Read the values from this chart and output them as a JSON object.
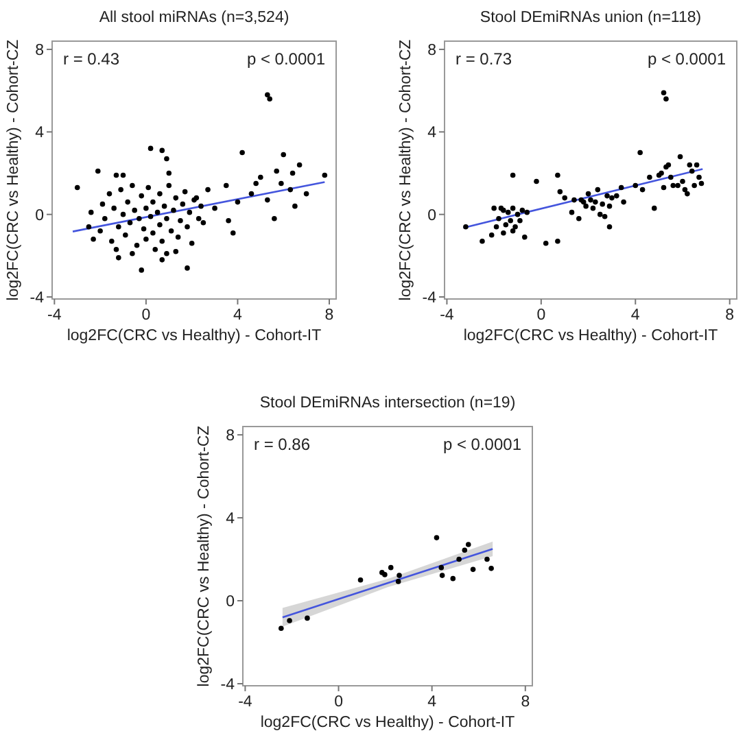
{
  "chart_data": [
    {
      "type": "scatter",
      "title": "All stool miRNAs (n=3,524)",
      "xlabel": "log2FC(CRC vs Healthy) - Cohort-IT",
      "ylabel": "log2FC(CRC vs Healthy) - Cohort-CZ",
      "xlim": [
        -4.1,
        8.3
      ],
      "ylim": [
        -4.1,
        8.4
      ],
      "xticks": [
        -4,
        0,
        4,
        8
      ],
      "yticks": [
        -4,
        0,
        4,
        8
      ],
      "marker": "circle",
      "annotations": [
        "r = 0.43",
        "p < 0.0001"
      ],
      "series": [
        {
          "color": "#000000",
          "x": [
            5.3,
            5.4,
            0.2,
            0.7,
            0.9,
            4.2,
            -2.1,
            -3.0,
            -1.3,
            -1.0,
            1.0,
            -2.3,
            -1.2,
            -0.2,
            1.8,
            0.7,
            3.8,
            5.6,
            6.5,
            6.0,
            6.7,
            5.9,
            7.8,
            6.4,
            5.7,
            5.0,
            4.6,
            4.0,
            3.5,
            3.0,
            2.7,
            2.5,
            2.2,
            6.3,
            5.3,
            4.8,
            3.6,
            7.0,
            -2.5,
            -2.4,
            -2.0,
            -1.9,
            -1.8,
            -1.6,
            -1.5,
            -1.4,
            -1.2,
            -1.1,
            -1.0,
            -0.9,
            -0.8,
            -0.7,
            -0.6,
            -0.5,
            -0.4,
            -0.3,
            -0.2,
            -0.1,
            0.0,
            0.0,
            0.1,
            0.2,
            0.3,
            0.3,
            0.4,
            0.5,
            0.6,
            0.6,
            0.7,
            0.8,
            0.9,
            1.0,
            1.1,
            1.2,
            1.3,
            1.4,
            1.5,
            1.6,
            1.7,
            1.8,
            1.9,
            2.0,
            2.1,
            2.3,
            2.4,
            -0.6,
            0.9,
            -1.3,
            1.3
          ],
          "values": [
            5.8,
            5.6,
            3.2,
            3.1,
            2.7,
            3.0,
            2.1,
            1.3,
            1.9,
            1.9,
            2.0,
            -1.2,
            -2.1,
            -2.7,
            -2.6,
            -2.2,
            -0.9,
            -0.2,
            0.4,
            2.9,
            2.4,
            1.5,
            1.9,
            2.0,
            2.1,
            1.8,
            1.0,
            0.6,
            1.4,
            0.3,
            1.2,
            -0.4,
            0.8,
            1.2,
            0.7,
            1.5,
            -0.3,
            1.0,
            -0.6,
            0.1,
            -0.8,
            0.5,
            -0.2,
            1.0,
            -1.3,
            0.3,
            -0.6,
            1.2,
            0.0,
            -1.0,
            0.6,
            -0.4,
            1.4,
            0.2,
            -1.5,
            -0.2,
            0.9,
            -0.7,
            0.3,
            -1.2,
            1.3,
            -0.1,
            0.6,
            -0.9,
            -1.7,
            0.1,
            1.0,
            -0.5,
            -1.3,
            0.4,
            -0.2,
            1.4,
            -0.8,
            0.2,
            0.8,
            -1.1,
            -0.3,
            0.5,
            1.1,
            -0.6,
            0.1,
            -1.4,
            0.7,
            -0.2,
            0.4,
            -1.9,
            -1.9,
            -1.7,
            -1.8
          ]
        },
        {
          "type": "line",
          "marker": "none",
          "color": "#4455dd",
          "x": [
            -3.2,
            7.8
          ],
          "values": [
            -0.83,
            1.57
          ]
        }
      ]
    },
    {
      "type": "scatter",
      "title": "Stool DEmiRNAs union (n=118)",
      "xlabel": "log2FC(CRC vs Healthy) - Cohort-IT",
      "ylabel": "log2FC(CRC vs Healthy) - Cohort-CZ",
      "xlim": [
        -4.1,
        8.3
      ],
      "ylim": [
        -4.1,
        8.4
      ],
      "xticks": [
        -4,
        0,
        4,
        8
      ],
      "yticks": [
        -4,
        0,
        4,
        8
      ],
      "marker": "circle",
      "annotations": [
        "r = 0.73",
        "p < 0.0001"
      ],
      "series": [
        {
          "color": "#000000",
          "x": [
            5.2,
            5.3,
            4.2,
            -1.2,
            0.7,
            -0.2,
            5.9,
            0.2,
            0.7,
            -0.7,
            2.9,
            -3.2,
            -2.5,
            -2.1,
            4.8,
            -2.0,
            -1.8,
            -1.6,
            -1.5,
            -1.4,
            -1.3,
            -1.2,
            -1.1,
            -1.0,
            -0.9,
            -0.8,
            -1.6,
            -1.2,
            -0.6,
            -1.9,
            -1.7,
            0.8,
            1.0,
            1.3,
            1.4,
            1.6,
            1.8,
            1.9,
            2.0,
            2.1,
            2.2,
            2.3,
            2.4,
            2.5,
            2.6,
            2.8,
            2.9,
            3.0,
            3.2,
            3.4,
            3.5,
            2.7,
            1.7,
            4.0,
            4.3,
            4.6,
            5.0,
            5.2,
            5.3,
            5.4,
            5.5,
            5.6,
            5.8,
            6.0,
            6.2,
            6.3,
            6.4,
            6.5,
            6.6,
            6.7,
            6.8,
            6.1,
            5.1
          ],
          "values": [
            5.9,
            5.6,
            3.0,
            1.9,
            1.9,
            1.6,
            2.8,
            -1.4,
            -1.3,
            -1.1,
            -0.6,
            -0.6,
            -1.3,
            -1.0,
            0.3,
            0.3,
            -0.2,
            0.2,
            -0.5,
            0.1,
            -0.3,
            0.3,
            -0.6,
            0.0,
            -0.3,
            0.2,
            -0.9,
            -0.8,
            0.1,
            -0.6,
            0.3,
            1.1,
            0.8,
            0.1,
            0.7,
            -0.2,
            0.6,
            0.4,
            1.0,
            0.7,
            0.3,
            0.6,
            1.2,
            0.0,
            0.5,
            0.9,
            0.4,
            0.8,
            0.9,
            1.3,
            0.6,
            -0.1,
            0.7,
            1.4,
            1.2,
            1.8,
            1.9,
            1.3,
            2.3,
            2.4,
            1.8,
            1.4,
            1.4,
            1.6,
            1.0,
            2.4,
            2.1,
            1.4,
            2.4,
            1.8,
            1.5,
            1.2,
            2.0
          ]
        },
        {
          "type": "line",
          "marker": "none",
          "color": "#4455dd",
          "x": [
            -3.3,
            6.85
          ],
          "values": [
            -0.65,
            2.2
          ]
        }
      ]
    },
    {
      "type": "scatter",
      "title": "Stool DEmiRNAs intersection (n=19)",
      "xlabel": "log2FC(CRC vs Healthy) - Cohort-IT",
      "ylabel": "log2FC(CRC vs Healthy) - Cohort-CZ",
      "xlim": [
        -4.1,
        8.3
      ],
      "ylim": [
        -4.1,
        8.4
      ],
      "xticks": [
        -4,
        0,
        4,
        8
      ],
      "yticks": [
        -4,
        0,
        4,
        8
      ],
      "marker": "circle",
      "annotations": [
        "r = 0.86",
        "p < 0.0001"
      ],
      "series": [
        {
          "color": "#000000",
          "x": [
            -2.46,
            -2.1,
            -1.34,
            0.94,
            1.86,
            1.98,
            2.24,
            2.6,
            2.56,
            4.2,
            4.4,
            4.44,
            4.9,
            5.16,
            5.4,
            5.56,
            5.76,
            6.36,
            6.54
          ],
          "values": [
            -1.33,
            -0.96,
            -0.84,
            1.0,
            1.36,
            1.26,
            1.6,
            1.22,
            0.93,
            3.04,
            1.6,
            1.22,
            1.07,
            2.0,
            2.44,
            2.71,
            1.51,
            2.0,
            1.56
          ]
        },
        {
          "type": "line",
          "marker": "none",
          "color": "#4455dd",
          "x": [
            -2.4,
            2.1,
            6.6
          ],
          "values": [
            -0.8,
            0.85,
            2.5
          ],
          "lower": [
            -1.25,
            0.65,
            2.15
          ],
          "upper": [
            -0.35,
            1.05,
            2.85
          ]
        }
      ]
    }
  ]
}
